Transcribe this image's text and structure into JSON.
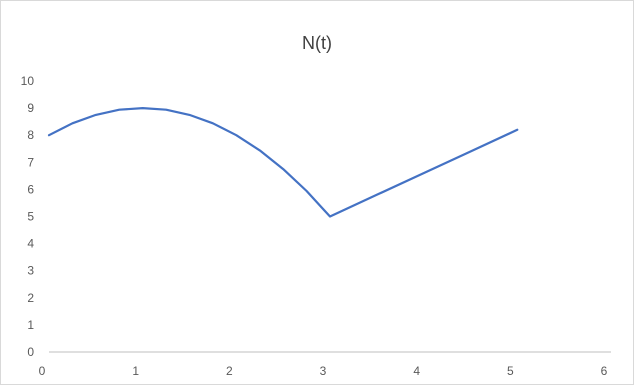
{
  "chart_data": {
    "type": "line",
    "title": "N(t)",
    "xlabel": "",
    "ylabel": "",
    "xlim": [
      0,
      6
    ],
    "ylim": [
      0,
      10
    ],
    "x_ticks": [
      0,
      1,
      2,
      3,
      4,
      5,
      6
    ],
    "y_ticks": [
      0,
      1,
      2,
      3,
      4,
      5,
      6,
      7,
      8,
      9,
      10
    ],
    "grid": false,
    "legend": "none",
    "colors": {
      "series": "#4472c4",
      "axis": "#bfbfbf",
      "text": "#595959"
    },
    "series": [
      {
        "x": [
          0,
          0.25,
          0.5,
          0.75,
          1,
          1.25,
          1.5,
          1.75,
          2,
          2.25,
          2.5,
          2.75,
          2.92,
          3,
          3.5,
          4,
          4.5,
          5
        ],
        "y": [
          8,
          8.44,
          8.75,
          8.94,
          9,
          8.94,
          8.75,
          8.44,
          8,
          7.44,
          6.75,
          5.94,
          5.3,
          5,
          5.8,
          6.6,
          7.4,
          8.2
        ]
      }
    ]
  }
}
